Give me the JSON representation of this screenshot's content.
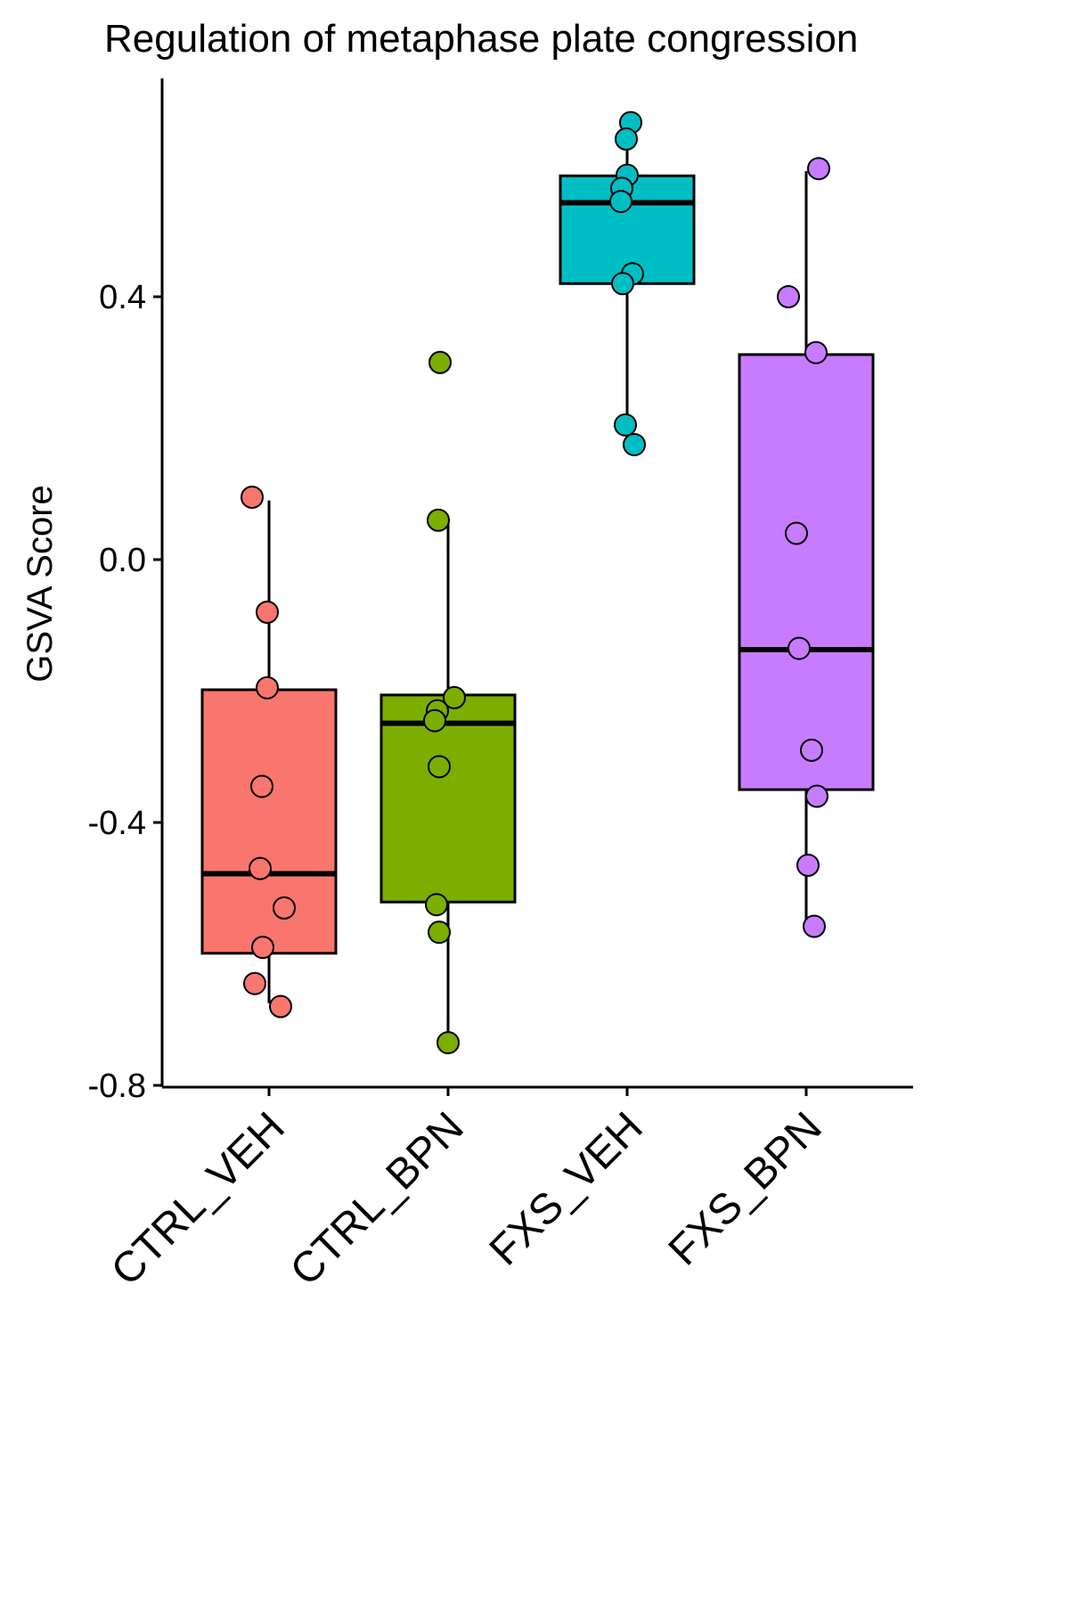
{
  "chart_data": {
    "type": "box",
    "title": "Regulation of metaphase plate congression",
    "xlabel": "",
    "ylabel": "GSVA Score",
    "ylim": [
      -0.8,
      0.73
    ],
    "yticks": [
      -0.8,
      -0.4,
      0.0,
      0.4
    ],
    "ytick_labels": [
      "-0.8",
      "-0.4",
      "0.0",
      "0.4"
    ],
    "categories": [
      "CTRL_VEH",
      "CTRL_BPN",
      "FXS_VEH",
      "FXS_BPN"
    ],
    "colors": [
      "#F8766D",
      "#7CAE00",
      "#00BFC4",
      "#C77CFF"
    ],
    "boxes": [
      {
        "group": "CTRL_VEH",
        "whisker_low": -0.675,
        "q1": -0.599,
        "median": -0.478,
        "q3": -0.198,
        "whisker_high": 0.09
      },
      {
        "group": "CTRL_BPN",
        "whisker_low": -0.735,
        "q1": -0.521,
        "median": -0.249,
        "q3": -0.206,
        "whisker_high": 0.059
      },
      {
        "group": "FXS_VEH",
        "whisker_low": 0.17,
        "q1": 0.42,
        "median": 0.543,
        "q3": 0.584,
        "whisker_high": 0.665
      },
      {
        "group": "FXS_BPN",
        "whisker_low": -0.556,
        "q1": -0.35,
        "median": -0.137,
        "q3": 0.312,
        "whisker_high": 0.591
      }
    ],
    "points": [
      {
        "group": "CTRL_VEH",
        "values": [
          0.095,
          -0.08,
          -0.195,
          -0.345,
          -0.47,
          -0.53,
          -0.59,
          -0.645,
          -0.68
        ],
        "jitter": [
          -0.19,
          -0.02,
          -0.02,
          -0.08,
          -0.1,
          0.17,
          -0.07,
          -0.16,
          0.13
        ]
      },
      {
        "group": "CTRL_BPN",
        "values": [
          0.3,
          0.06,
          -0.21,
          -0.23,
          -0.245,
          -0.315,
          -0.525,
          -0.567,
          -0.735
        ],
        "jitter": [
          -0.09,
          -0.11,
          0.07,
          -0.12,
          -0.15,
          -0.1,
          -0.13,
          -0.1,
          0.0
        ]
      },
      {
        "group": "FXS_VEH",
        "values": [
          0.665,
          0.64,
          0.585,
          0.565,
          0.545,
          0.435,
          0.42,
          0.205,
          0.175
        ],
        "jitter": [
          0.04,
          -0.01,
          0.0,
          -0.06,
          -0.07,
          0.06,
          -0.05,
          -0.02,
          0.08
        ]
      },
      {
        "group": "FXS_BPN",
        "values": [
          0.595,
          0.4,
          0.315,
          0.04,
          -0.135,
          -0.29,
          -0.36,
          -0.465,
          -0.558
        ],
        "jitter": [
          0.14,
          -0.2,
          0.11,
          -0.11,
          -0.08,
          0.06,
          0.12,
          0.02,
          0.09
        ]
      }
    ],
    "legend": "none",
    "grid": false
  }
}
